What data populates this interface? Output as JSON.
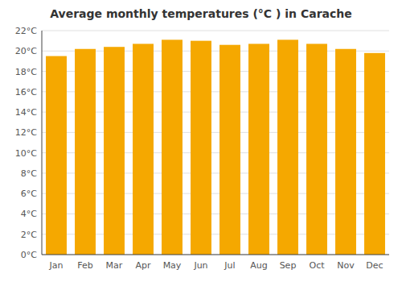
{
  "chart_data": {
    "type": "bar",
    "title": "Average monthly temperatures (°C ) in Carache",
    "categories": [
      "Jan",
      "Feb",
      "Mar",
      "Apr",
      "May",
      "Jun",
      "Jul",
      "Aug",
      "Sep",
      "Oct",
      "Nov",
      "Dec"
    ],
    "values": [
      19.5,
      20.2,
      20.4,
      20.7,
      21.1,
      21.0,
      20.6,
      20.7,
      21.1,
      20.7,
      20.2,
      19.8
    ],
    "color": "#F5A800",
    "ylim": [
      0,
      22
    ],
    "yticks": [
      {
        "value": 0,
        "label": "0°C"
      },
      {
        "value": 2,
        "label": "2°C"
      },
      {
        "value": 4,
        "label": "4°C"
      },
      {
        "value": 6,
        "label": "6°C"
      },
      {
        "value": 8,
        "label": "8°C"
      },
      {
        "value": 10,
        "label": "10°C"
      },
      {
        "value": 12,
        "label": "12°C"
      },
      {
        "value": 14,
        "label": "14°C"
      },
      {
        "value": 16,
        "label": "16°C"
      },
      {
        "value": 18,
        "label": "18°C"
      },
      {
        "value": 20,
        "label": "20°C"
      },
      {
        "value": 22,
        "label": "22°C"
      }
    ],
    "grid": true
  }
}
